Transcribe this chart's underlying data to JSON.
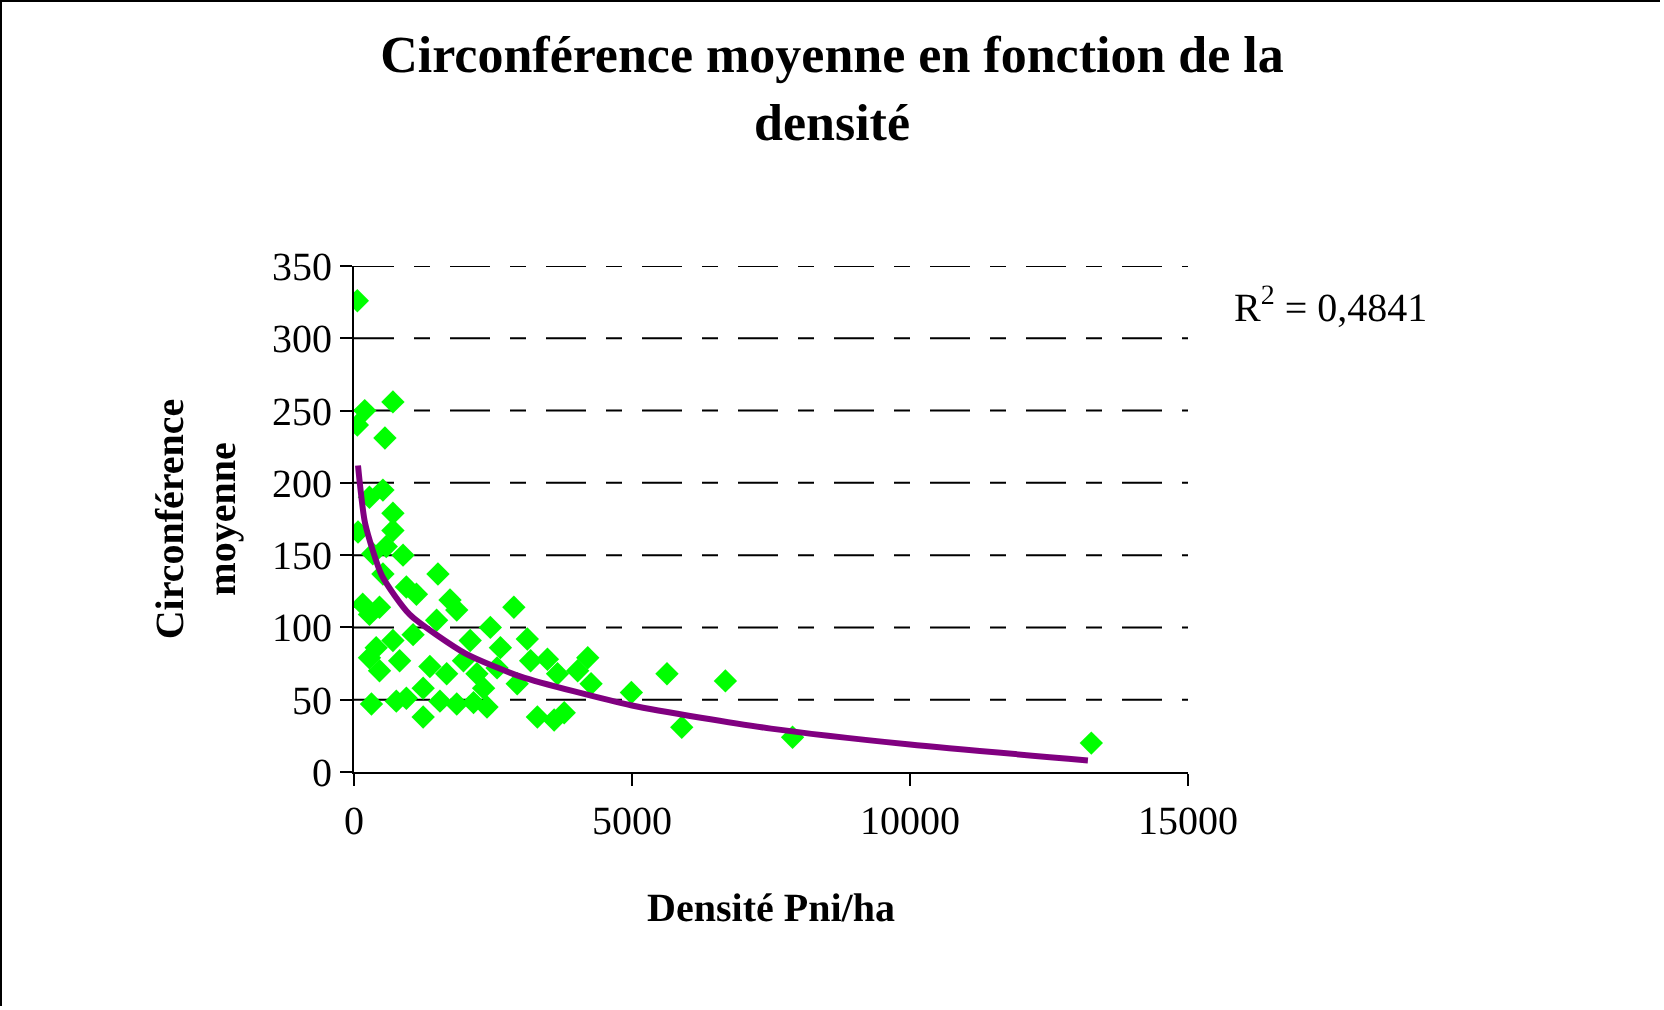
{
  "chart_data": {
    "type": "scatter",
    "title": "Circonférence moyenne en fonction de la densité",
    "xlabel": "Densité Pni/ha",
    "ylabel": "Circonférence moyenne",
    "annotations": [
      "R$^{2}$ = 0,4841"
    ],
    "xlim": [
      0,
      15000
    ],
    "xticks": [
      0,
      5000,
      10000,
      15000
    ],
    "ylim": [
      0,
      350
    ],
    "yticks": [
      0,
      50,
      100,
      150,
      200,
      250,
      300,
      350
    ],
    "grid": "y",
    "marker": "diamond",
    "series": [
      {
        "color": "#00ff00",
        "x": [
          60,
          193,
          60,
          700,
          556,
          520,
          278,
          700,
          700,
          72,
          580,
          882,
          338,
          520,
          1510,
          942,
          1123,
          1727,
          1848,
          2875,
          157,
          278,
          459,
          1486,
          2452,
          1063,
          700,
          399,
          3117,
          2090,
          2633,
          278,
          821,
          1365,
          1969,
          3479,
          4204,
          3177,
          459,
          1667,
          2211,
          2573,
          3660,
          4023,
          5629,
          6680,
          4264,
          2935,
          1244,
          942,
          2331,
          4989,
          1546,
          1848,
          2150,
          2392,
          314,
          761,
          3298,
          3600,
          3781,
          1244,
          5895,
          7888,
          13261
        ],
        "values": [
          326,
          250,
          240,
          256,
          231,
          195,
          190,
          179,
          167,
          166,
          156,
          150,
          151,
          137,
          137,
          128,
          123,
          119,
          112,
          114,
          116,
          109,
          114,
          105,
          100,
          95,
          91,
          86,
          92,
          91,
          86,
          79,
          77,
          73,
          77,
          78,
          79,
          77,
          70,
          68,
          68,
          72,
          68,
          70,
          68,
          63,
          61,
          61,
          58,
          51,
          58,
          55,
          49,
          47,
          48,
          45,
          47,
          49,
          38,
          36,
          41,
          38,
          31,
          24,
          20
        ]
      },
      {
        "type": "line",
        "color": "#800080",
        "marker": "none",
        "x": [
          72,
          200,
          500,
          1000,
          2000,
          3000,
          5000,
          7500,
          10000,
          13200
        ],
        "values": [
          212,
          172,
          136,
          109,
          82,
          66,
          46,
          30,
          19,
          8
        ]
      }
    ]
  }
}
